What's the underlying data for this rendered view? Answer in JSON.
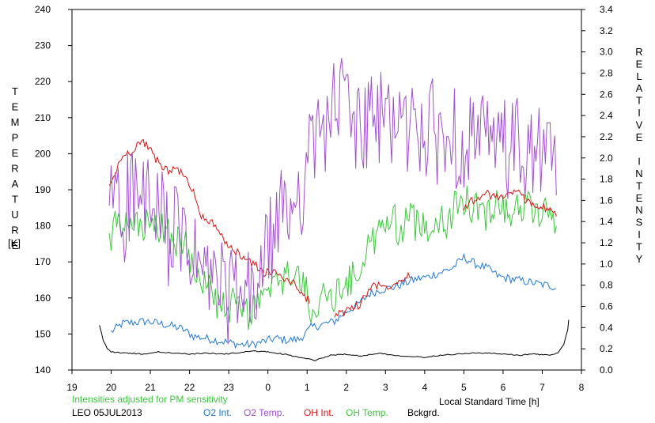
{
  "chart_data": {
    "type": "line",
    "xlabel": "Local Standard Time [h]",
    "ylabel_left": "TEMPERATURE",
    "ylabel_left_unit": "[K]",
    "ylabel_right": "RELATIVE INTENSITY",
    "note": "Intensities adjusted for PM sensitivity",
    "footer": "LEO 05JUL2013",
    "x_ticks": [
      "19",
      "20",
      "21",
      "22",
      "23",
      "0",
      "1",
      "2",
      "3",
      "4",
      "5",
      "6",
      "7",
      "8"
    ],
    "xlim": [
      19,
      32
    ],
    "ylim_left": [
      140,
      240
    ],
    "ylim_right": [
      0.0,
      3.4
    ],
    "y_ticks_left": [
      "140",
      "150",
      "160",
      "170",
      "180",
      "190",
      "200",
      "210",
      "220",
      "230",
      "240"
    ],
    "y_ticks_right": [
      "0.0",
      "0.2",
      "0.4",
      "0.6",
      "0.8",
      "1.0",
      "1.2",
      "1.4",
      "1.6",
      "1.8",
      "2.0",
      "2.2",
      "2.4",
      "2.6",
      "2.8",
      "3.0",
      "3.2",
      "3.4"
    ],
    "grid": false,
    "legend_position": "bottom",
    "series": [
      {
        "name": "O2 Int.",
        "color": "#1e78dc",
        "axis": "right",
        "x": [
          20.0,
          20.3,
          20.6,
          20.9,
          21.2,
          21.5,
          21.8,
          22.1,
          22.4,
          22.7,
          23.0,
          23.3,
          23.6,
          23.9,
          24.2,
          24.5,
          24.8,
          25.0,
          25.1,
          25.7,
          26.0,
          26.3,
          26.6,
          26.9,
          27.2,
          27.5,
          27.8,
          28.1,
          28.4,
          28.7,
          29.0,
          29.3,
          29.6,
          29.9,
          30.2,
          30.5,
          30.8,
          31.1,
          31.4
        ],
        "values": [
          0.36,
          0.44,
          0.45,
          0.46,
          0.44,
          0.42,
          0.39,
          0.32,
          0.3,
          0.28,
          0.26,
          0.24,
          0.24,
          0.27,
          0.3,
          0.28,
          0.29,
          0.36,
          0.4,
          0.46,
          0.55,
          0.62,
          0.72,
          0.76,
          0.78,
          0.82,
          0.86,
          0.88,
          0.92,
          0.96,
          1.06,
          1.0,
          0.96,
          0.88,
          0.86,
          0.84,
          0.82,
          0.8,
          0.78
        ]
      },
      {
        "name": "O2 Temp.",
        "color": "#a050d2",
        "axis": "left",
        "x": [
          19.95,
          20.1,
          20.3,
          20.5,
          20.7,
          20.9,
          21.1,
          21.3,
          21.5,
          21.7,
          21.9,
          22.1,
          22.3,
          22.5,
          22.7,
          22.9,
          23.1,
          23.3,
          23.5,
          23.7,
          23.9,
          24.1,
          24.3,
          24.5,
          24.7,
          24.9,
          25.1,
          25.6,
          25.8,
          26.0,
          26.2,
          26.4,
          26.6,
          26.8,
          27.0,
          27.2,
          27.4,
          27.6,
          27.8,
          28.0,
          28.2,
          28.4,
          28.6,
          28.8,
          29.0,
          29.2,
          29.4,
          29.6,
          29.8,
          30.0,
          30.2,
          30.4,
          30.6,
          30.8,
          31.0,
          31.2,
          31.4
        ],
        "values": [
          180,
          195,
          180,
          192,
          185,
          188,
          180,
          182,
          176,
          178,
          174,
          170,
          168,
          164,
          166,
          160,
          162,
          158,
          160,
          162,
          170,
          176,
          182,
          184,
          188,
          192,
          200,
          212,
          214,
          216,
          208,
          206,
          210,
          207,
          212,
          210,
          208,
          206,
          210,
          204,
          207,
          204,
          206,
          204,
          203,
          206,
          202,
          204,
          200,
          203,
          200,
          202,
          198,
          201,
          198,
          200,
          196
        ]
      },
      {
        "name": "OH Int.",
        "color": "#dc1414",
        "axis": "right",
        "x": [
          19.95,
          20.1,
          20.3,
          20.5,
          20.7,
          20.9,
          21.1,
          21.3,
          21.5,
          21.7,
          21.9,
          22.1,
          22.3,
          22.5,
          22.7,
          22.9,
          23.1,
          23.3,
          23.5,
          23.7,
          23.9,
          24.1,
          24.3,
          24.5,
          24.7,
          24.9,
          25.1,
          25.7,
          25.9,
          26.1,
          26.3,
          26.7,
          26.9,
          27.1,
          27.3,
          27.5,
          27.7,
          29.0,
          29.2,
          29.4,
          29.6,
          29.8,
          30.0,
          30.2,
          30.4,
          30.6,
          30.8,
          31.0,
          31.2,
          31.4
        ],
        "values": [
          1.72,
          1.86,
          2.02,
          2.06,
          2.14,
          2.14,
          2.0,
          1.92,
          1.88,
          1.9,
          1.8,
          1.68,
          1.46,
          1.4,
          1.36,
          1.18,
          1.14,
          1.08,
          1.04,
          0.98,
          0.92,
          0.92,
          0.9,
          0.84,
          0.82,
          0.68,
          0.66,
          0.52,
          0.54,
          0.58,
          0.6,
          0.82,
          0.78,
          0.8,
          0.84,
          0.88,
          0.92,
          1.52,
          1.6,
          1.62,
          1.66,
          1.62,
          1.64,
          1.68,
          1.66,
          1.6,
          1.56,
          1.54,
          1.5,
          1.46
        ]
      },
      {
        "name": "OH Temp.",
        "color": "#3cc83c",
        "axis": "left",
        "x": [
          19.95,
          20.1,
          20.3,
          20.5,
          20.7,
          20.9,
          21.1,
          21.3,
          21.5,
          21.7,
          21.9,
          22.1,
          22.3,
          22.5,
          22.7,
          22.9,
          23.1,
          23.3,
          23.5,
          23.7,
          23.9,
          24.1,
          24.3,
          24.5,
          24.7,
          24.9,
          25.1,
          25.6,
          25.8,
          26.0,
          26.2,
          26.6,
          26.8,
          27.0,
          27.2,
          27.4,
          27.6,
          27.8,
          28.0,
          28.2,
          28.4,
          28.6,
          28.8,
          29.0,
          29.2,
          29.4,
          29.6,
          29.8,
          30.0,
          30.2,
          30.4,
          30.6,
          30.8,
          31.0,
          31.2,
          31.4
        ],
        "values": [
          175,
          180,
          178,
          181,
          179,
          180,
          178,
          180,
          177,
          176,
          174,
          170,
          166,
          162,
          159,
          156,
          158,
          157,
          156,
          158,
          160,
          162,
          164,
          166,
          168,
          163,
          158,
          160,
          162,
          164,
          166,
          174,
          178,
          180,
          182,
          178,
          183,
          180,
          182,
          178,
          184,
          180,
          186,
          188,
          184,
          186,
          182,
          188,
          186,
          184,
          185,
          186,
          184,
          183,
          184,
          182
        ]
      },
      {
        "name": "Bckgrd.",
        "color": "#000000",
        "axis": "right",
        "x": [
          19.7,
          19.8,
          19.9,
          20.0,
          20.4,
          20.8,
          21.2,
          21.6,
          22.0,
          22.4,
          22.8,
          23.2,
          23.6,
          24.0,
          24.4,
          24.8,
          25.2,
          25.6,
          26.0,
          26.4,
          26.8,
          27.2,
          27.6,
          28.0,
          28.4,
          28.8,
          29.2,
          29.6,
          30.0,
          30.4,
          30.8,
          31.2,
          31.4,
          31.55,
          31.65,
          31.7
        ],
        "values": [
          0.42,
          0.28,
          0.2,
          0.17,
          0.16,
          0.15,
          0.17,
          0.16,
          0.15,
          0.16,
          0.15,
          0.16,
          0.18,
          0.17,
          0.15,
          0.12,
          0.09,
          0.14,
          0.15,
          0.13,
          0.16,
          0.14,
          0.13,
          0.12,
          0.14,
          0.15,
          0.16,
          0.16,
          0.15,
          0.14,
          0.15,
          0.14,
          0.16,
          0.24,
          0.38,
          0.56
        ]
      }
    ]
  }
}
